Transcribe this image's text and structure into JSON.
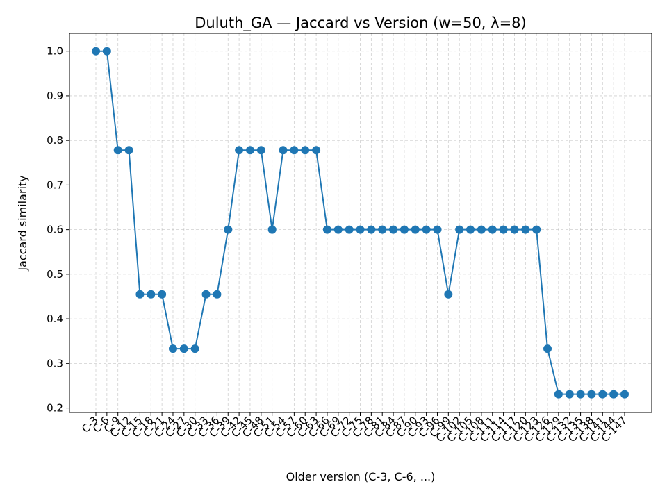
{
  "chart_data": {
    "type": "line",
    "title": "Duluth_GA — Jaccard vs Version (w=50, λ=8)",
    "xlabel": "Older version (C-3, C-6, ...)",
    "ylabel": "Jaccard similarity",
    "ylim": [
      0.19,
      1.04
    ],
    "yticks": [
      0.2,
      0.3,
      0.4,
      0.5,
      0.6,
      0.7,
      0.8,
      0.9,
      1.0
    ],
    "ytick_labels": [
      "0.2",
      "0.3",
      "0.4",
      "0.5",
      "0.6",
      "0.7",
      "0.8",
      "0.9",
      "1.0"
    ],
    "grid": true,
    "color": "#1f77b4",
    "categories": [
      "C-3",
      "C-6",
      "C-9",
      "C-12",
      "C-15",
      "C-18",
      "C-21",
      "C-24",
      "C-27",
      "C-30",
      "C-33",
      "C-36",
      "C-39",
      "C-42",
      "C-45",
      "C-48",
      "C-51",
      "C-54",
      "C-57",
      "C-60",
      "C-63",
      "C-66",
      "C-69",
      "C-72",
      "C-75",
      "C-78",
      "C-81",
      "C-84",
      "C-87",
      "C-90",
      "C-93",
      "C-96",
      "C-99",
      "C-102",
      "C-105",
      "C-108",
      "C-111",
      "C-114",
      "C-117",
      "C-120",
      "C-123",
      "C-126",
      "C-129",
      "C-132",
      "C-135",
      "C-138",
      "C-141",
      "C-144",
      "C-147"
    ],
    "values": [
      1.0,
      1.0,
      0.778,
      0.778,
      0.455,
      0.455,
      0.455,
      0.333,
      0.333,
      0.333,
      0.455,
      0.455,
      0.6,
      0.778,
      0.778,
      0.778,
      0.6,
      0.778,
      0.778,
      0.778,
      0.778,
      0.6,
      0.6,
      0.6,
      0.6,
      0.6,
      0.6,
      0.6,
      0.6,
      0.6,
      0.6,
      0.6,
      0.455,
      0.6,
      0.6,
      0.6,
      0.6,
      0.6,
      0.6,
      0.6,
      0.6,
      0.333,
      0.231,
      0.231,
      0.231,
      0.231,
      0.231,
      0.231,
      0.231
    ]
  }
}
